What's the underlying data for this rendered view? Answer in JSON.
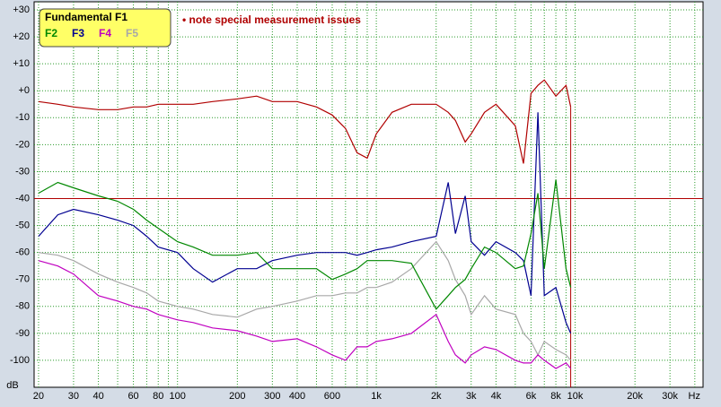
{
  "chart_data": {
    "type": "line",
    "legend_title": "Fundamental F1",
    "annotation": "• note special measurement issues",
    "x_unit": "Hz",
    "y_unit": "dB",
    "x_scale": "log",
    "grid": true,
    "x": [
      20,
      25,
      30,
      40,
      50,
      60,
      70,
      80,
      100,
      120,
      150,
      200,
      250,
      300,
      400,
      500,
      600,
      700,
      800,
      900,
      1000,
      1200,
      1500,
      2000,
      2300,
      2500,
      2800,
      3000,
      3500,
      4000,
      5000,
      5500,
      6000,
      6500,
      7000,
      8000,
      9000,
      9500
    ],
    "series": [
      {
        "name": "Fundamental F1",
        "color": "#b00000",
        "values": [
          -4,
          -5,
          -6,
          -7,
          -7,
          -6,
          -6,
          -5,
          -5,
          -5,
          -4,
          -3,
          -2,
          -4,
          -4,
          -6,
          -9,
          -14,
          -23,
          -25,
          -16,
          -8,
          -5,
          -5,
          -8,
          -11,
          -19,
          -16,
          -8,
          -5,
          -13,
          -27,
          -1,
          2,
          4,
          -2,
          2,
          -6
        ]
      },
      {
        "name": "F2",
        "color": "#008800",
        "values": [
          -38,
          -34,
          -36,
          -39,
          -41,
          -44,
          -48,
          -51,
          -56,
          -58,
          -61,
          -61,
          -60,
          -66,
          -66,
          -66,
          -70,
          -68,
          -66,
          -63,
          -63,
          -63,
          -64,
          -81,
          -76,
          -73,
          -70,
          -66,
          -58,
          -60,
          -66,
          -65,
          -53,
          -38,
          -66,
          -33,
          -66,
          -73
        ]
      },
      {
        "name": "F3",
        "color": "#000090",
        "values": [
          -54,
          -46,
          -44,
          -46,
          -48,
          -50,
          -54,
          -58,
          -60,
          -66,
          -71,
          -66,
          -66,
          -63,
          -61,
          -60,
          -60,
          -60,
          -61,
          -60,
          -59,
          -58,
          -56,
          -54,
          -34,
          -53,
          -39,
          -56,
          -61,
          -56,
          -60,
          -63,
          -76,
          -8,
          -76,
          -73,
          -86,
          -90
        ]
      },
      {
        "name": "F4",
        "color": "#c000c0",
        "values": [
          -63,
          -65,
          -68,
          -76,
          -78,
          -80,
          -81,
          -83,
          -85,
          -86,
          -88,
          -89,
          -91,
          -93,
          -92,
          -95,
          -98,
          -100,
          -95,
          -95,
          -93,
          -92,
          -90,
          -83,
          -93,
          -98,
          -101,
          -98,
          -95,
          -96,
          -100,
          -101,
          -101,
          -98,
          -100,
          -103,
          -101,
          -103
        ]
      },
      {
        "name": "F5",
        "color": "#a8a8a8",
        "values": [
          -60,
          -61,
          -63,
          -68,
          -71,
          -73,
          -75,
          -78,
          -80,
          -81,
          -83,
          -84,
          -81,
          -80,
          -78,
          -76,
          -76,
          -75,
          -75,
          -73,
          -73,
          -71,
          -66,
          -56,
          -63,
          -70,
          -76,
          -83,
          -76,
          -81,
          -83,
          -90,
          -93,
          -98,
          -93,
          -96,
          -98,
          -100
        ]
      }
    ],
    "marker_level": -40,
    "cutoff_frequency": 9500,
    "xlim": [
      19,
      44000
    ],
    "ylim": [
      -110,
      33
    ],
    "xticks": [
      20,
      30,
      40,
      60,
      80,
      100,
      200,
      300,
      400,
      600,
      {
        "value": 1000,
        "label": "1k"
      },
      {
        "value": 2000,
        "label": "2k"
      },
      {
        "value": 3000,
        "label": "3k"
      },
      {
        "value": 4000,
        "label": "4k"
      },
      {
        "value": 6000,
        "label": "6k"
      },
      {
        "value": 8000,
        "label": "8k"
      },
      {
        "value": 10000,
        "label": "10k"
      },
      {
        "value": 20000,
        "label": "20k"
      },
      {
        "value": 30000,
        "label": "30k"
      }
    ],
    "minor_xticks": [
      50,
      70,
      90,
      500,
      700,
      800,
      900,
      5000,
      7000,
      9000,
      40000
    ],
    "yticks": [
      {
        "value": 30,
        "label": "+30"
      },
      {
        "value": 20,
        "label": "+20"
      },
      {
        "value": 10,
        "label": "+10"
      },
      {
        "value": 0,
        "label": "+0"
      },
      -10,
      -20,
      -30,
      -40,
      -50,
      -60,
      -70,
      -80,
      -90,
      -100
    ]
  }
}
